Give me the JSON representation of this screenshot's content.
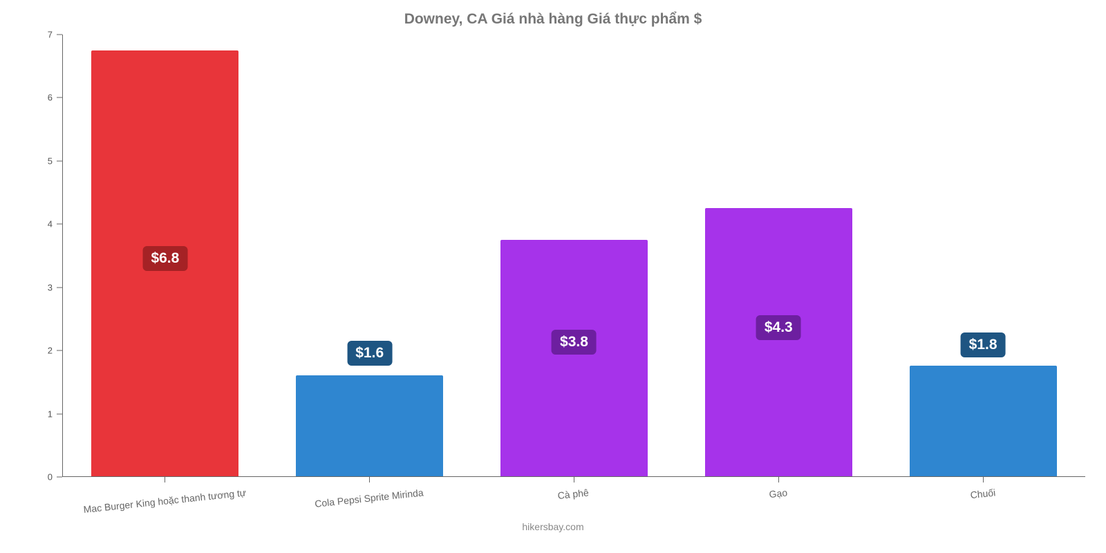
{
  "chart": {
    "type": "bar",
    "title": "Downey, CA Giá nhà hàng Giá thực phẩm $",
    "title_fontsize": 21,
    "title_color": "#777777",
    "background_color": "#ffffff",
    "axis_color": "#666666",
    "ylim": [
      0,
      7
    ],
    "yticks": [
      0,
      1,
      2,
      3,
      4,
      5,
      6,
      7
    ],
    "ytick_fontsize": 13,
    "ytick_color": "#555555",
    "xlabel_fontsize": 14,
    "xlabel_color": "#666666",
    "xlabel_rotation_deg": -6,
    "bar_width_pct": 72,
    "value_badge_fontsize": 21,
    "value_badge_text_color": "#ffffff",
    "value_badge_radius": 6,
    "attribution": "hikersbay.com",
    "attribution_fontsize": 14,
    "attribution_color": "#888888",
    "bars": [
      {
        "label": "Mac Burger King hoặc thanh tương tự",
        "value": 6.75,
        "display": "$6.8",
        "color": "#e8353a",
        "badge_bg": "#a52225",
        "badge_top_pct": 46
      },
      {
        "label": "Cola Pepsi Sprite Mirinda",
        "value": 1.6,
        "display": "$1.6",
        "color": "#2f86d0",
        "badge_bg": "#1e5582",
        "badge_top_pct": -34
      },
      {
        "label": "Cà phê",
        "value": 3.75,
        "display": "$3.8",
        "color": "#a633ea",
        "badge_bg": "#6d1fa0",
        "badge_top_pct": 38
      },
      {
        "label": "Gạo",
        "value": 4.25,
        "display": "$4.3",
        "color": "#a633ea",
        "badge_bg": "#6d1fa0",
        "badge_top_pct": 40
      },
      {
        "label": "Chuối",
        "value": 1.75,
        "display": "$1.8",
        "color": "#2f86d0",
        "badge_bg": "#1e5582",
        "badge_top_pct": -30
      }
    ]
  }
}
